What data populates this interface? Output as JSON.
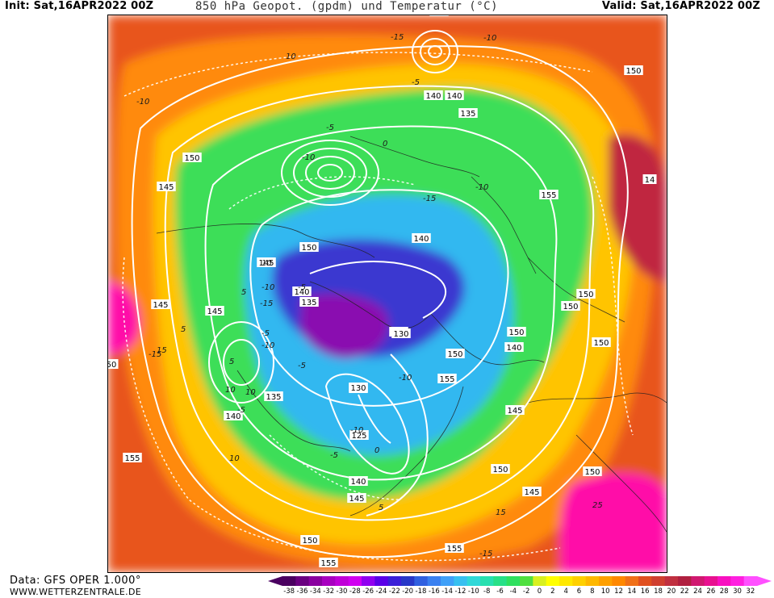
{
  "header": {
    "init": "Init: Sat,16APR2022 00Z",
    "title": "850 hPa Geopot. (gpdm) und Temperatur (°C)",
    "valid": "Valid: Sat,16APR2022 00Z"
  },
  "footer": {
    "data_source": "Data: GFS OPER 1.000°",
    "website": "WWW.WETTERZENTRALE.DE"
  },
  "legend": {
    "ticks": [
      "-38",
      "-36",
      "-34",
      "-32",
      "-30",
      "-28",
      "-26",
      "-24",
      "-22",
      "-20",
      "-18",
      "-16",
      "-14",
      "-12",
      "-10",
      "-8",
      "-6",
      "-4",
      "-2",
      "0",
      "2",
      "4",
      "6",
      "8",
      "10",
      "12",
      "14",
      "16",
      "18",
      "20",
      "22",
      "24",
      "26",
      "28",
      "30",
      "32"
    ],
    "colors": [
      "#4a0060",
      "#6a0080",
      "#8a00a0",
      "#a800c0",
      "#c000d8",
      "#d000f0",
      "#9000f0",
      "#5a00e8",
      "#3a20d8",
      "#2838c8",
      "#3060e0",
      "#3a80f0",
      "#40a0f8",
      "#38c0f0",
      "#30d8d8",
      "#28e0b0",
      "#28e088",
      "#30e060",
      "#50e040",
      "#d8f020",
      "#ffff00",
      "#ffe800",
      "#ffd000",
      "#ffb800",
      "#ffa000",
      "#ff8800",
      "#f07018",
      "#e05020",
      "#d04030",
      "#c03040",
      "#b02040",
      "#d01870",
      "#e81090",
      "#f810c0",
      "#ff20e0",
      "#ff50ff"
    ]
  },
  "map": {
    "contour_labels": [
      "135",
      "140",
      "140",
      "135",
      "150",
      "150",
      "145",
      "155",
      "140",
      "145",
      "150",
      "145",
      "150",
      "145",
      "140",
      "135",
      "150",
      "145",
      "130",
      "155",
      "135",
      "150",
      "140",
      "150",
      "50",
      "140",
      "135",
      "145",
      "125",
      "130",
      "155",
      "140",
      "150",
      "145",
      "150",
      "145",
      "155",
      "155",
      "150",
      "150",
      "14"
    ],
    "temp_labels": [
      "10",
      "-10",
      "-5",
      "-10",
      "-15",
      "-10",
      "-5",
      "0",
      "-15",
      "-10",
      "10",
      "-5",
      "-10",
      "-15",
      "5",
      "-5",
      "-10",
      "-10",
      "-5",
      "0",
      "5",
      "10",
      "-15",
      "-10",
      "-5",
      "15",
      "5",
      "10",
      "-5",
      "15",
      "5",
      "10",
      "-15",
      "25"
    ],
    "colors": {
      "hot": "#e03818",
      "warm": "#ff9000",
      "mild": "#ffd000",
      "cool": "#30e060",
      "cold": "#30a0f0",
      "colder": "#3a30d0",
      "coldest": "#8a10b0",
      "extreme": "#ff00b0",
      "contour": "#ffffff",
      "coast": "#202020"
    }
  }
}
